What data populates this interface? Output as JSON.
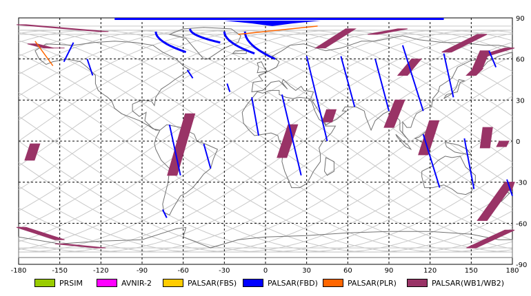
{
  "map": {
    "lon_ticks": [
      "-180",
      "-150",
      "-120",
      "-90",
      "-60",
      "-30",
      "0",
      "30",
      "60",
      "90",
      "120",
      "150",
      "180"
    ],
    "lat_ticks": [
      "90",
      "60",
      "30",
      "0",
      "-30",
      "-60",
      "-90"
    ],
    "lon_range": [
      -180,
      180
    ],
    "lat_range": [
      -90,
      90
    ],
    "grid": "dashed every 30 degrees",
    "colors": {
      "coastline": "#707070",
      "orbit": "#c8c8c8",
      "grid": "#000000"
    }
  },
  "legend": [
    {
      "label": "PRSIM",
      "color": "#99cc00"
    },
    {
      "label": "AVNIR-2",
      "color": "#ff00ff"
    },
    {
      "label": "PALSAR(FBS)",
      "color": "#ffcc00"
    },
    {
      "label": "PALSAR(FBD)",
      "color": "#0000ff"
    },
    {
      "label": "PALSAR(PLR)",
      "color": "#ff6600"
    },
    {
      "label": "PALSAR(WB1/WB2)",
      "color": "#993366"
    }
  ],
  "observations": {
    "wb": [
      {
        "lat1": 85,
        "lon1": -178,
        "lat2": 80,
        "lon2": -118
      },
      {
        "lat1": 68,
        "lon1": -155,
        "lat2": 68,
        "lon2": -150
      },
      {
        "lat1": 71,
        "lon1": -170,
        "lat2": 68,
        "lon2": -158
      },
      {
        "lat1": 82,
        "lon1": 62,
        "lat2": 68,
        "lon2": 40
      },
      {
        "lat1": 82,
        "lon1": 100,
        "lat2": 78,
        "lon2": 78
      },
      {
        "lat1": 78,
        "lon1": 158,
        "lat2": 65,
        "lon2": 132
      },
      {
        "lat1": 68,
        "lon1": 178,
        "lat2": 62,
        "lon2": 158
      },
      {
        "lat1": 66,
        "lon1": 160,
        "lat2": 52,
        "lon2": 154
      },
      {
        "lat1": 60,
        "lon1": 110,
        "lat2": 48,
        "lon2": 100
      },
      {
        "lat1": 53,
        "lon1": 155,
        "lat2": 48,
        "lon2": 150
      },
      {
        "lat1": 20,
        "lon1": -55,
        "lat2": -25,
        "lon2": -68
      },
      {
        "lat1": -2,
        "lon1": -168,
        "lat2": -14,
        "lon2": -172
      },
      {
        "lat1": 12,
        "lon1": 20,
        "lat2": -12,
        "lon2": 12
      },
      {
        "lat1": 23,
        "lon1": 48,
        "lat2": 14,
        "lon2": 45
      },
      {
        "lat1": 30,
        "lon1": 98,
        "lat2": 10,
        "lon2": 90
      },
      {
        "lat1": 15,
        "lon1": 123,
        "lat2": -10,
        "lon2": 115
      },
      {
        "lat1": 10,
        "lon1": 162,
        "lat2": -5,
        "lon2": 160
      },
      {
        "lat1": -30,
        "lon1": 178,
        "lat2": -58,
        "lon2": 158
      },
      {
        "lat1": -63,
        "lon1": -178,
        "lat2": -72,
        "lon2": -150
      },
      {
        "lat1": -75,
        "lon1": -150,
        "lat2": -78,
        "lon2": -120
      },
      {
        "lat1": -65,
        "lon1": 178,
        "lat2": -78,
        "lon2": 150
      },
      {
        "lat1": -30,
        "lon1": 178,
        "lat2": -36,
        "lon2": 176
      },
      {
        "lat1": 0,
        "lon1": 174,
        "lat2": -4,
        "lon2": 172
      }
    ],
    "fbd": [
      {
        "lat1": 72,
        "lon1": -140,
        "lat2": 58,
        "lon2": -147
      },
      {
        "lat1": 60,
        "lon1": -130,
        "lat2": 48,
        "lon2": -126
      },
      {
        "lat1": 52,
        "lon1": -57,
        "lat2": 46,
        "lon2": -53
      },
      {
        "lat1": 42,
        "lon1": -28,
        "lat2": 36,
        "lon2": -26
      },
      {
        "lat1": 32,
        "lon1": -10,
        "lat2": 4,
        "lon2": -5
      },
      {
        "lat1": 34,
        "lon1": 12,
        "lat2": -25,
        "lon2": 26
      },
      {
        "lat1": 62,
        "lon1": 30,
        "lat2": 0,
        "lon2": 45
      },
      {
        "lat1": 62,
        "lon1": 55,
        "lat2": 25,
        "lon2": 65
      },
      {
        "lat1": 60,
        "lon1": 80,
        "lat2": 22,
        "lon2": 90
      },
      {
        "lat1": 70,
        "lon1": 100,
        "lat2": 22,
        "lon2": 115
      },
      {
        "lat1": 5,
        "lon1": 115,
        "lat2": -34,
        "lon2": 127
      },
      {
        "lat1": 64,
        "lon1": 130,
        "lat2": 32,
        "lon2": 137
      },
      {
        "lat1": 2,
        "lon1": 145,
        "lat2": -35,
        "lon2": 152
      },
      {
        "lat1": 66,
        "lon1": 163,
        "lat2": 54,
        "lon2": 168
      },
      {
        "lat1": 12,
        "lon1": -70,
        "lat2": -25,
        "lon2": -62
      },
      {
        "lat1": -2,
        "lon1": -45,
        "lat2": -20,
        "lon2": -40
      },
      {
        "lat1": -50,
        "lon1": -75,
        "lat2": -56,
        "lon2": -72
      },
      {
        "lat1": -28,
        "lon1": 176,
        "lat2": -40,
        "lon2": 180
      }
    ],
    "fbd_arcs": [
      {
        "lon": -80,
        "lat1": 80,
        "lat2": 65
      },
      {
        "lon": -55,
        "lat1": 82,
        "lat2": 72
      },
      {
        "lon": -30,
        "lat1": 80,
        "lat2": 64
      },
      {
        "lon": -15,
        "lat1": 80,
        "lat2": 60
      }
    ],
    "plr": [
      {
        "lat1": 73,
        "lon1": -168,
        "lat2": 55,
        "lon2": -155
      },
      {
        "lat1": 78,
        "lon1": -20,
        "lat2": 84,
        "lon2": 38
      }
    ]
  }
}
